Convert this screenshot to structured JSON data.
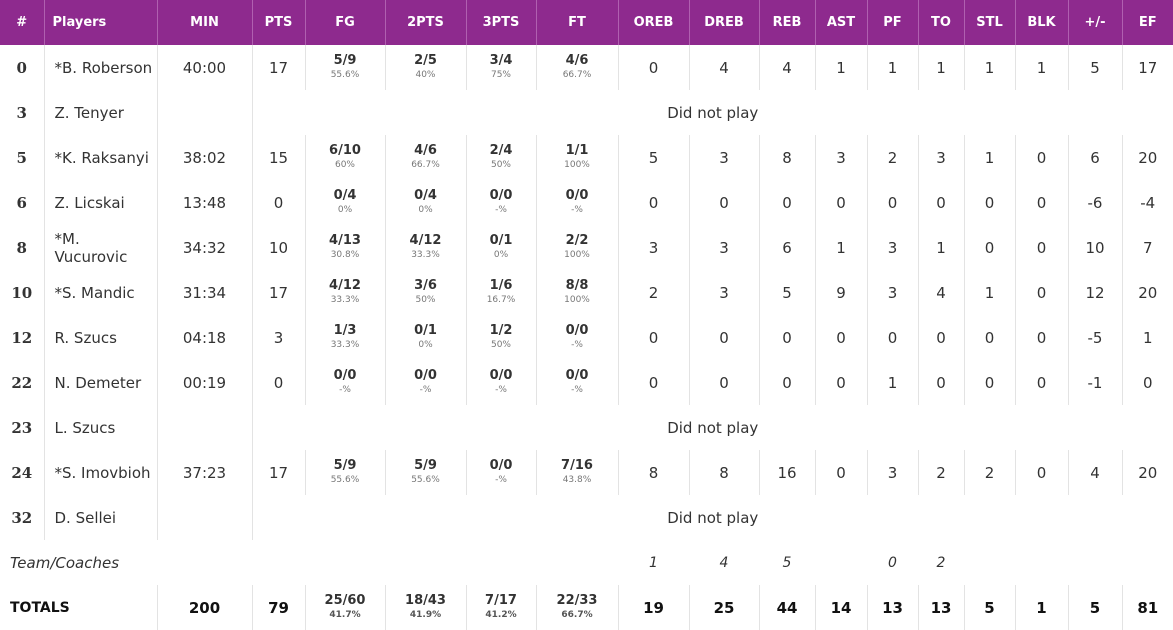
{
  "columns": [
    "#",
    "Players",
    "MIN",
    "PTS",
    "FG",
    "2PTS",
    "3PTS",
    "FT",
    "OREB",
    "DREB",
    "REB",
    "AST",
    "PF",
    "TO",
    "STL",
    "BLK",
    "+/-",
    "EF"
  ],
  "players": [
    {
      "num": "0",
      "name": "*B. Roberson",
      "played": true,
      "min": "40:00",
      "pts": "17",
      "fg": {
        "m": "5/9",
        "p": "55.6%"
      },
      "two": {
        "m": "2/5",
        "p": "40%"
      },
      "three": {
        "m": "3/4",
        "p": "75%"
      },
      "ft": {
        "m": "4/6",
        "p": "66.7%"
      },
      "oreb": "0",
      "dreb": "4",
      "reb": "4",
      "ast": "1",
      "pf": "1",
      "to": "1",
      "stl": "1",
      "blk": "1",
      "pm": "5",
      "ef": "17"
    },
    {
      "num": "3",
      "name": "Z. Tenyer",
      "played": false,
      "dnp": "Did not play"
    },
    {
      "num": "5",
      "name": "*K. Raksanyi",
      "played": true,
      "min": "38:02",
      "pts": "15",
      "fg": {
        "m": "6/10",
        "p": "60%"
      },
      "two": {
        "m": "4/6",
        "p": "66.7%"
      },
      "three": {
        "m": "2/4",
        "p": "50%"
      },
      "ft": {
        "m": "1/1",
        "p": "100%"
      },
      "oreb": "5",
      "dreb": "3",
      "reb": "8",
      "ast": "3",
      "pf": "2",
      "to": "3",
      "stl": "1",
      "blk": "0",
      "pm": "6",
      "ef": "20"
    },
    {
      "num": "6",
      "name": "Z. Licskai",
      "played": true,
      "min": "13:48",
      "pts": "0",
      "fg": {
        "m": "0/4",
        "p": "0%"
      },
      "two": {
        "m": "0/4",
        "p": "0%"
      },
      "three": {
        "m": "0/0",
        "p": "-%"
      },
      "ft": {
        "m": "0/0",
        "p": "-%"
      },
      "oreb": "0",
      "dreb": "0",
      "reb": "0",
      "ast": "0",
      "pf": "0",
      "to": "0",
      "stl": "0",
      "blk": "0",
      "pm": "-6",
      "ef": "-4"
    },
    {
      "num": "8",
      "name": "*M. Vucurovic",
      "played": true,
      "min": "34:32",
      "pts": "10",
      "fg": {
        "m": "4/13",
        "p": "30.8%"
      },
      "two": {
        "m": "4/12",
        "p": "33.3%"
      },
      "three": {
        "m": "0/1",
        "p": "0%"
      },
      "ft": {
        "m": "2/2",
        "p": "100%"
      },
      "oreb": "3",
      "dreb": "3",
      "reb": "6",
      "ast": "1",
      "pf": "3",
      "to": "1",
      "stl": "0",
      "blk": "0",
      "pm": "10",
      "ef": "7"
    },
    {
      "num": "10",
      "name": "*S. Mandic",
      "played": true,
      "min": "31:34",
      "pts": "17",
      "fg": {
        "m": "4/12",
        "p": "33.3%"
      },
      "two": {
        "m": "3/6",
        "p": "50%"
      },
      "three": {
        "m": "1/6",
        "p": "16.7%"
      },
      "ft": {
        "m": "8/8",
        "p": "100%"
      },
      "oreb": "2",
      "dreb": "3",
      "reb": "5",
      "ast": "9",
      "pf": "3",
      "to": "4",
      "stl": "1",
      "blk": "0",
      "pm": "12",
      "ef": "20"
    },
    {
      "num": "12",
      "name": "R. Szucs",
      "played": true,
      "min": "04:18",
      "pts": "3",
      "fg": {
        "m": "1/3",
        "p": "33.3%"
      },
      "two": {
        "m": "0/1",
        "p": "0%"
      },
      "three": {
        "m": "1/2",
        "p": "50%"
      },
      "ft": {
        "m": "0/0",
        "p": "-%"
      },
      "oreb": "0",
      "dreb": "0",
      "reb": "0",
      "ast": "0",
      "pf": "0",
      "to": "0",
      "stl": "0",
      "blk": "0",
      "pm": "-5",
      "ef": "1"
    },
    {
      "num": "22",
      "name": "N. Demeter",
      "played": true,
      "min": "00:19",
      "pts": "0",
      "fg": {
        "m": "0/0",
        "p": "-%"
      },
      "two": {
        "m": "0/0",
        "p": "-%"
      },
      "three": {
        "m": "0/0",
        "p": "-%"
      },
      "ft": {
        "m": "0/0",
        "p": "-%"
      },
      "oreb": "0",
      "dreb": "0",
      "reb": "0",
      "ast": "0",
      "pf": "1",
      "to": "0",
      "stl": "0",
      "blk": "0",
      "pm": "-1",
      "ef": "0"
    },
    {
      "num": "23",
      "name": "L. Szucs",
      "played": false,
      "dnp": "Did not play"
    },
    {
      "num": "24",
      "name": "*S. Imovbioh",
      "played": true,
      "min": "37:23",
      "pts": "17",
      "fg": {
        "m": "5/9",
        "p": "55.6%"
      },
      "two": {
        "m": "5/9",
        "p": "55.6%"
      },
      "three": {
        "m": "0/0",
        "p": "-%"
      },
      "ft": {
        "m": "7/16",
        "p": "43.8%"
      },
      "oreb": "8",
      "dreb": "8",
      "reb": "16",
      "ast": "0",
      "pf": "3",
      "to": "2",
      "stl": "2",
      "blk": "0",
      "pm": "4",
      "ef": "20"
    },
    {
      "num": "32",
      "name": "D. Sellei",
      "played": false,
      "dnp": "Did not play"
    }
  ],
  "team": {
    "label": "Team/Coaches",
    "oreb": "1",
    "dreb": "4",
    "reb": "5",
    "pf": "0",
    "to": "2"
  },
  "totals": {
    "label": "TOTALS",
    "min": "200",
    "pts": "79",
    "fg": {
      "m": "25/60",
      "p": "41.7%"
    },
    "two": {
      "m": "18/43",
      "p": "41.9%"
    },
    "three": {
      "m": "7/17",
      "p": "41.2%"
    },
    "ft": {
      "m": "22/33",
      "p": "66.7%"
    },
    "oreb": "19",
    "dreb": "25",
    "reb": "44",
    "ast": "14",
    "pf": "13",
    "to": "13",
    "stl": "5",
    "blk": "1",
    "pm": "5",
    "ef": "81"
  },
  "colors": {
    "header_bg": "#8e2a8e",
    "header_text": "#ffffff"
  }
}
